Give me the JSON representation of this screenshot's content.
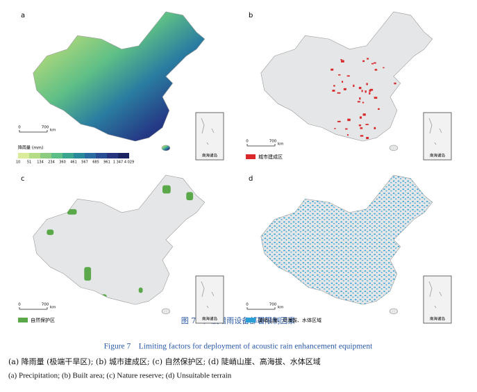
{
  "panels": [
    {
      "label": "a",
      "scale": {
        "zero": "0",
        "distance": "700",
        "unit": "km"
      },
      "inset": "南海诸岛",
      "legend": {
        "title": "降雨量 (mm)",
        "ticks": [
          "10",
          "51",
          "134",
          "234",
          "360",
          "461",
          "567",
          "685",
          "961",
          "1 347",
          "4 029"
        ]
      }
    },
    {
      "label": "b",
      "scale": {
        "zero": "0",
        "distance": "700",
        "unit": "km"
      },
      "inset": "南海诸岛",
      "legend": {
        "text": "城市建成区"
      }
    },
    {
      "label": "c",
      "scale": {
        "zero": "0",
        "distance": "700",
        "unit": "km"
      },
      "inset": "南海诸岛",
      "legend": {
        "text": "自然保护区"
      }
    },
    {
      "label": "d",
      "scale": {
        "zero": "0",
        "distance": "700",
        "unit": "km"
      },
      "inset": "南海诸岛",
      "legend": {
        "text": "陡峭山崖、高海拔、水体区域"
      }
    }
  ],
  "caption": {
    "title_zh": "图 7　声波增雨设备部署限制因素",
    "title_en": "Figure 7　Limiting factors for deployment of acoustic rain enhancement equipment",
    "sub_zh": "(a) 降雨量 (极端干旱区); (b) 城市建成区; (c) 自然保护区; (d) 陡峭山崖、高海拔、水体区域",
    "sub_en": "(a) Precipitation; (b) Built area; (c) Nature reserve; (d) Unsuitable terrain"
  }
}
